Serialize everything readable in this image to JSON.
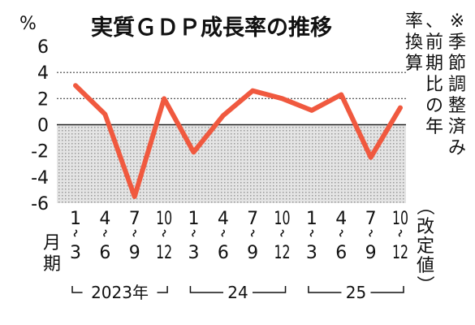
{
  "chart_data": {
    "type": "line",
    "title": "実質ＧＤＰ成長率の推移",
    "y_unit": "%",
    "note": "※季節調整済み、前期比の年率換算",
    "x_axis_label": "月期",
    "ylim": [
      -6,
      6
    ],
    "y_ticks": [
      "6",
      "4",
      "2",
      "0",
      "-2",
      "-4",
      "-6"
    ],
    "y_tick_values": [
      6,
      4,
      2,
      0,
      -2,
      -4,
      -6
    ],
    "dotted_gridlines_at": [
      4,
      2
    ],
    "negative_region_shaded": true,
    "categories": [
      {
        "top": "1",
        "bottom": "3"
      },
      {
        "top": "4",
        "bottom": "6"
      },
      {
        "top": "7",
        "bottom": "9"
      },
      {
        "top": "10",
        "bottom": "12"
      },
      {
        "top": "1",
        "bottom": "3"
      },
      {
        "top": "4",
        "bottom": "6"
      },
      {
        "top": "7",
        "bottom": "9"
      },
      {
        "top": "10",
        "bottom": "12"
      },
      {
        "top": "1",
        "bottom": "3"
      },
      {
        "top": "4",
        "bottom": "6"
      },
      {
        "top": "7",
        "bottom": "9"
      },
      {
        "top": "10",
        "bottom": "12"
      }
    ],
    "last_category_note": "（改定値）",
    "year_groups": [
      {
        "label": "2023年",
        "start": 0,
        "end": 3
      },
      {
        "label": "24",
        "start": 4,
        "end": 7
      },
      {
        "label": "25",
        "start": 8,
        "end": 11
      }
    ],
    "values": [
      3.0,
      0.8,
      -5.5,
      2.0,
      -2.1,
      0.7,
      2.6,
      2.0,
      1.1,
      2.3,
      -2.5,
      1.3
    ],
    "line_color": "#f0593f"
  }
}
